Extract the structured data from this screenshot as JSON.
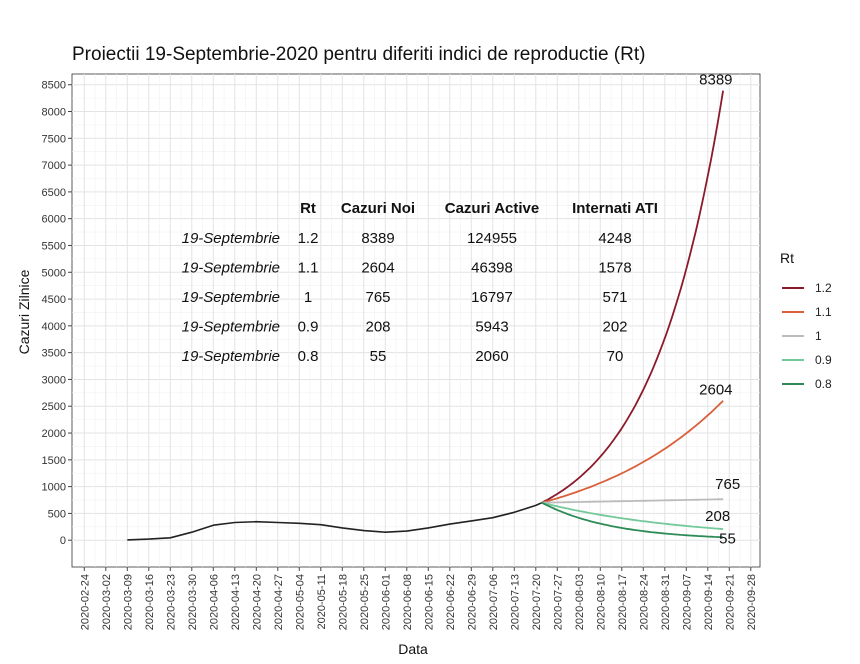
{
  "chart_data": {
    "type": "line",
    "title": "Proiectii 19-Septembrie-2020 pentru diferiti indici de reproductie (Rt)",
    "xlabel": "Data",
    "ylabel": "Cazuri Zilnice",
    "ylim": [
      -500,
      8700
    ],
    "yticks": [
      0,
      500,
      1000,
      1500,
      2000,
      2500,
      3000,
      3500,
      4000,
      4500,
      5000,
      5500,
      6000,
      6500,
      7000,
      7500,
      8000,
      8500
    ],
    "xlim": [
      "2020-02-20",
      "2020-10-01"
    ],
    "xticks": [
      "2020-02-24",
      "2020-03-02",
      "2020-03-09",
      "2020-03-16",
      "2020-03-23",
      "2020-03-30",
      "2020-04-06",
      "2020-04-13",
      "2020-04-20",
      "2020-04-27",
      "2020-05-04",
      "2020-05-11",
      "2020-05-18",
      "2020-05-25",
      "2020-06-01",
      "2020-06-08",
      "2020-06-15",
      "2020-06-22",
      "2020-06-29",
      "2020-07-06",
      "2020-07-13",
      "2020-07-20",
      "2020-07-27",
      "2020-08-03",
      "2020-08-10",
      "2020-08-17",
      "2020-08-24",
      "2020-08-31",
      "2020-09-07",
      "2020-09-14",
      "2020-09-21",
      "2020-09-28"
    ],
    "grid": true,
    "history": {
      "color": "#222222",
      "points": [
        [
          "2020-03-09",
          5
        ],
        [
          "2020-03-16",
          20
        ],
        [
          "2020-03-23",
          45
        ],
        [
          "2020-03-30",
          150
        ],
        [
          "2020-04-06",
          280
        ],
        [
          "2020-04-13",
          330
        ],
        [
          "2020-04-20",
          345
        ],
        [
          "2020-04-27",
          330
        ],
        [
          "2020-05-04",
          315
        ],
        [
          "2020-05-11",
          290
        ],
        [
          "2020-05-18",
          230
        ],
        [
          "2020-05-25",
          180
        ],
        [
          "2020-06-01",
          150
        ],
        [
          "2020-06-08",
          170
        ],
        [
          "2020-06-15",
          230
        ],
        [
          "2020-06-22",
          300
        ],
        [
          "2020-06-29",
          360
        ],
        [
          "2020-07-06",
          420
        ],
        [
          "2020-07-13",
          520
        ],
        [
          "2020-07-20",
          650
        ],
        [
          "2020-07-22",
          700
        ]
      ]
    },
    "series": [
      {
        "name": "1.2",
        "color": "#8b1a2b",
        "start": [
          "2020-07-22",
          700
        ],
        "end": [
          "2020-09-19",
          8389
        ],
        "curve": "exp"
      },
      {
        "name": "1.1",
        "color": "#d9603b",
        "start": [
          "2020-07-22",
          700
        ],
        "end": [
          "2020-09-19",
          2604
        ],
        "curve": "exp"
      },
      {
        "name": "1",
        "color": "#bbbbbb",
        "start": [
          "2020-07-22",
          700
        ],
        "end": [
          "2020-09-19",
          765
        ],
        "curve": "exp"
      },
      {
        "name": "0.9",
        "color": "#74c99a",
        "start": [
          "2020-07-22",
          700
        ],
        "end": [
          "2020-09-19",
          208
        ],
        "curve": "exp"
      },
      {
        "name": "0.8",
        "color": "#2e8b57",
        "start": [
          "2020-07-22",
          700
        ],
        "end": [
          "2020-09-19",
          55
        ],
        "curve": "exp"
      }
    ],
    "end_labels": [
      "8389",
      "2604",
      "765",
      "208",
      "55"
    ],
    "legend": {
      "title": "Rt",
      "placement": "right"
    },
    "table": {
      "headers": [
        "",
        "Rt",
        "Cazuri Noi",
        "Cazuri Active",
        "Internati ATI"
      ],
      "rows": [
        [
          "19-Septembrie",
          "1.2",
          "8389",
          "124955",
          "4248"
        ],
        [
          "19-Septembrie",
          "1.1",
          "2604",
          "46398",
          "1578"
        ],
        [
          "19-Septembrie",
          "1",
          "765",
          "16797",
          "571"
        ],
        [
          "19-Septembrie",
          "0.9",
          "208",
          "5943",
          "202"
        ],
        [
          "19-Septembrie",
          "0.8",
          "55",
          "2060",
          "70"
        ]
      ]
    }
  }
}
